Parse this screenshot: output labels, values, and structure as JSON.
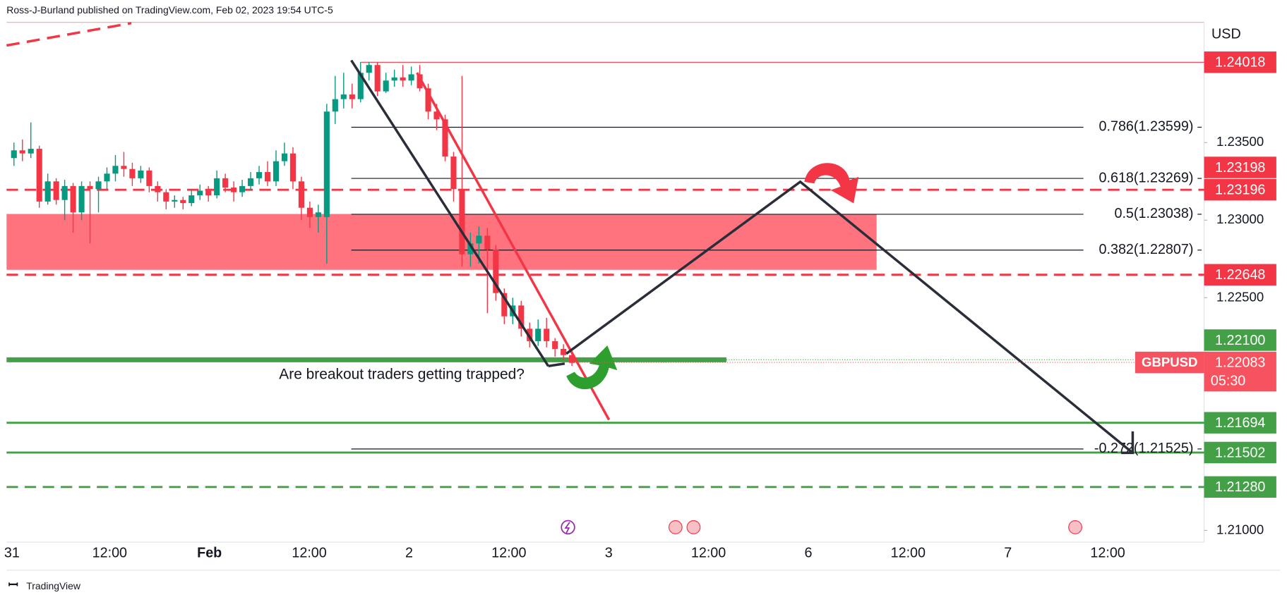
{
  "header": "Ross-J-Burland published on TradingView.com, Feb 02, 2023 19:54 UTC-5",
  "footer": "TradingView",
  "chart_data": {
    "type": "candlestick",
    "currency": "USD",
    "symbol": "GBPUSD",
    "annotation": "Are breakout traders getting trapped?",
    "up_color": "#089981",
    "down_color": "#f23645",
    "ylim": [
      1.2093,
      1.2427
    ],
    "yticks": [
      {
        "value": 1.21,
        "label": "1.21000"
      },
      {
        "value": 1.225,
        "label": "1.22500"
      },
      {
        "value": 1.23,
        "label": "1.23000"
      },
      {
        "value": 1.235,
        "label": "1.23500"
      }
    ],
    "x_labels": [
      "31",
      "12:00",
      "Feb",
      "12:00",
      "2",
      "12:00",
      "3",
      "12:00",
      "6",
      "12:00",
      "7",
      "12:00"
    ],
    "ohlc": [
      [
        1.234,
        1.235,
        1.2335,
        1.2345
      ],
      [
        1.2345,
        1.2352,
        1.2338,
        1.2343
      ],
      [
        1.2343,
        1.2363,
        1.234,
        1.2346
      ],
      [
        1.2346,
        1.2348,
        1.2308,
        1.2312
      ],
      [
        1.2312,
        1.233,
        1.231,
        1.2325
      ],
      [
        1.2325,
        1.2327,
        1.231,
        1.2313
      ],
      [
        1.2313,
        1.2326,
        1.23,
        1.2322
      ],
      [
        1.2322,
        1.2324,
        1.2292,
        1.2305
      ],
      [
        1.2305,
        1.2325,
        1.23,
        1.2322
      ],
      [
        1.2322,
        1.2325,
        1.2285,
        1.232
      ],
      [
        1.232,
        1.2328,
        1.2305,
        1.2325
      ],
      [
        1.2325,
        1.2334,
        1.232,
        1.233
      ],
      [
        1.233,
        1.2342,
        1.2325,
        1.2335
      ],
      [
        1.2335,
        1.2344,
        1.2328,
        1.2333
      ],
      [
        1.2333,
        1.2337,
        1.2322,
        1.2327
      ],
      [
        1.2327,
        1.2335,
        1.2324,
        1.2332
      ],
      [
        1.2332,
        1.2334,
        1.2318,
        1.2322
      ],
      [
        1.2322,
        1.2325,
        1.2312,
        1.2318
      ],
      [
        1.2318,
        1.232,
        1.2307,
        1.2312
      ],
      [
        1.2312,
        1.2316,
        1.2308,
        1.2313
      ],
      [
        1.2313,
        1.2315,
        1.2307,
        1.2311
      ],
      [
        1.2311,
        1.232,
        1.2309,
        1.2316
      ],
      [
        1.2316,
        1.2323,
        1.2313,
        1.2319
      ],
      [
        1.2319,
        1.2322,
        1.2312,
        1.2316
      ],
      [
        1.2316,
        1.2332,
        1.2314,
        1.2327
      ],
      [
        1.2327,
        1.233,
        1.2318,
        1.2321
      ],
      [
        1.2321,
        1.2325,
        1.2312,
        1.2318
      ],
      [
        1.2318,
        1.2326,
        1.2315,
        1.2322
      ],
      [
        1.2322,
        1.2331,
        1.2319,
        1.2327
      ],
      [
        1.2327,
        1.2335,
        1.2323,
        1.2331
      ],
      [
        1.2331,
        1.2338,
        1.2322,
        1.2325
      ],
      [
        1.2325,
        1.2345,
        1.2322,
        1.2338
      ],
      [
        1.2338,
        1.235,
        1.2335,
        1.2343
      ],
      [
        1.2343,
        1.2347,
        1.232,
        1.2325
      ],
      [
        1.2325,
        1.2328,
        1.23,
        1.2308
      ],
      [
        1.2308,
        1.2312,
        1.2295,
        1.2302
      ],
      [
        1.2302,
        1.231,
        1.2292,
        1.2305
      ],
      [
        1.2302,
        1.2375,
        1.2272,
        1.237
      ],
      [
        1.237,
        1.2393,
        1.2362,
        1.2378
      ],
      [
        1.2378,
        1.2395,
        1.2372,
        1.2381
      ],
      [
        1.2381,
        1.2388,
        1.2372,
        1.2378
      ],
      [
        1.2378,
        1.2402,
        1.2376,
        1.2395
      ],
      [
        1.2395,
        1.2402,
        1.239,
        1.24
      ],
      [
        1.24,
        1.2402,
        1.238,
        1.2383
      ],
      [
        1.2383,
        1.2395,
        1.2382,
        1.239
      ],
      [
        1.239,
        1.2397,
        1.2386,
        1.2392
      ],
      [
        1.2392,
        1.24,
        1.2386,
        1.239
      ],
      [
        1.239,
        1.2399,
        1.2387,
        1.2394
      ],
      [
        1.2394,
        1.24,
        1.2383,
        1.2385
      ],
      [
        1.2385,
        1.2388,
        1.2365,
        1.237
      ],
      [
        1.237,
        1.2375,
        1.2358,
        1.2365
      ],
      [
        1.2365,
        1.2368,
        1.2338,
        1.2341
      ],
      [
        1.2341,
        1.2344,
        1.2312,
        1.232
      ],
      [
        1.232,
        1.2393,
        1.227,
        1.2278
      ],
      [
        1.2278,
        1.2292,
        1.227,
        1.2285
      ],
      [
        1.2285,
        1.2296,
        1.2272,
        1.229
      ],
      [
        1.229,
        1.2295,
        1.224,
        1.2281
      ],
      [
        1.2281,
        1.2284,
        1.2248,
        1.2253
      ],
      [
        1.2253,
        1.2256,
        1.2233,
        1.2238
      ],
      [
        1.2238,
        1.225,
        1.2233,
        1.2245
      ],
      [
        1.2245,
        1.2248,
        1.2225,
        1.223
      ],
      [
        1.223,
        1.2234,
        1.2218,
        1.2222
      ],
      [
        1.2222,
        1.2236,
        1.2219,
        1.223
      ],
      [
        1.223,
        1.2237,
        1.2218,
        1.2222
      ],
      [
        1.2222,
        1.2224,
        1.2212,
        1.2217
      ],
      [
        1.2217,
        1.222,
        1.221,
        1.2213
      ],
      [
        1.2213,
        1.2215,
        1.2206,
        1.2208
      ]
    ],
    "levels": [
      {
        "value": 1.24018,
        "label": "1.24018",
        "color": "#f23645",
        "line": "thin"
      },
      {
        "value": 1.23198,
        "label": "1.23198",
        "color": "#f23645",
        "line": "none"
      },
      {
        "value": 1.23196,
        "label": "1.23196",
        "color": "#f23645",
        "line": "dashed"
      },
      {
        "value": 1.22648,
        "label": "1.22648",
        "color": "#f23645",
        "line": "dashed"
      },
      {
        "value": 1.221,
        "label": "1.22100",
        "color": "#43a047",
        "line": "thick"
      },
      {
        "value": 1.21694,
        "label": "1.21694",
        "color": "#43a047",
        "line": "solid"
      },
      {
        "value": 1.21502,
        "label": "1.21502",
        "color": "#43a047",
        "line": "solid"
      },
      {
        "value": 1.2128,
        "label": "1.21280",
        "color": "#43a047",
        "line": "dashed"
      }
    ],
    "zone": {
      "values": [
        1.2268,
        1.2304
      ],
      "color": "#ff6b78"
    },
    "fib": [
      {
        "value": 1.23599,
        "label": "0.786(1.23599)"
      },
      {
        "value": 1.23269,
        "label": "0.618(1.23269)"
      },
      {
        "value": 1.23038,
        "label": "0.5(1.23038)"
      },
      {
        "value": 1.22807,
        "label": "0.382(1.22807)"
      },
      {
        "value": 1.21525,
        "label": "-0.272(1.21525)"
      }
    ],
    "last_price": {
      "value": 1.22083,
      "label": "1.22083",
      "countdown": "05:30",
      "color": "#f7525f"
    }
  }
}
